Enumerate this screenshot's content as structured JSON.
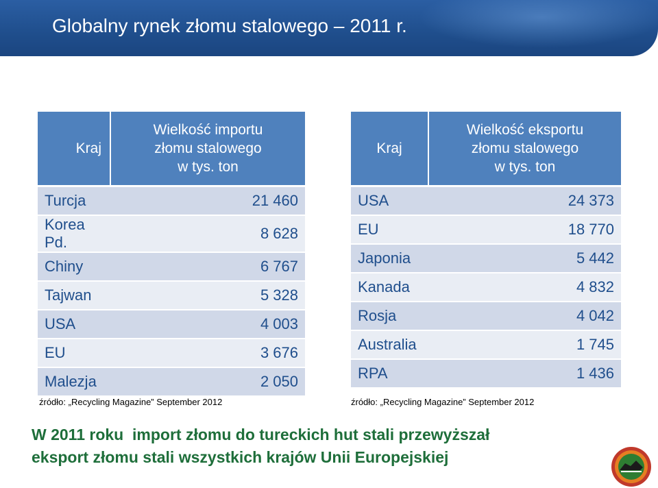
{
  "title": "Globalny rynek złomu stalowego – 2011 r.",
  "import_table": {
    "header_country": "Kraj",
    "header_value": [
      "Wielkość importu",
      "złomu stalowego",
      "w tys. ton"
    ],
    "rows": [
      {
        "country": "Turcja",
        "value": "21 460"
      },
      {
        "country": "Korea Pd.",
        "value": "8 628"
      },
      {
        "country": "Chiny",
        "value": "6 767"
      },
      {
        "country": "Tajwan",
        "value": "5 328"
      },
      {
        "country": "USA",
        "value": "4 003"
      },
      {
        "country": "EU",
        "value": "3 676"
      },
      {
        "country": "Malezja",
        "value": "2 050"
      }
    ],
    "source": "źródło: „Recycling Magazine” September 2012"
  },
  "export_table": {
    "header_country": "Kraj",
    "header_value": [
      "Wielkość eksportu",
      "złomu stalowego",
      "w tys. ton"
    ],
    "rows": [
      {
        "country": "USA",
        "value": "24 373"
      },
      {
        "country": "EU",
        "value": "18 770"
      },
      {
        "country": "Japonia",
        "value": "5 442"
      },
      {
        "country": "Kanada",
        "value": "4 832"
      },
      {
        "country": "Rosja",
        "value": "4 042"
      },
      {
        "country": "Australia",
        "value": "1 745"
      },
      {
        "country": "RPA",
        "value": "1 436"
      }
    ],
    "source": "źródło: „Recycling Magazine” September 2012"
  },
  "caption": [
    "W 2011 roku  import złomu do tureckich hut stali przewyższał",
    "eksport złomu stali wszystkich krajów Unii Europejskiej"
  ],
  "colors": {
    "header_blue": "#4f81bd",
    "title_bar": "#1f4e8c",
    "caption_green": "#1e6e3a"
  },
  "logo_icon": "recycling-logo-icon"
}
